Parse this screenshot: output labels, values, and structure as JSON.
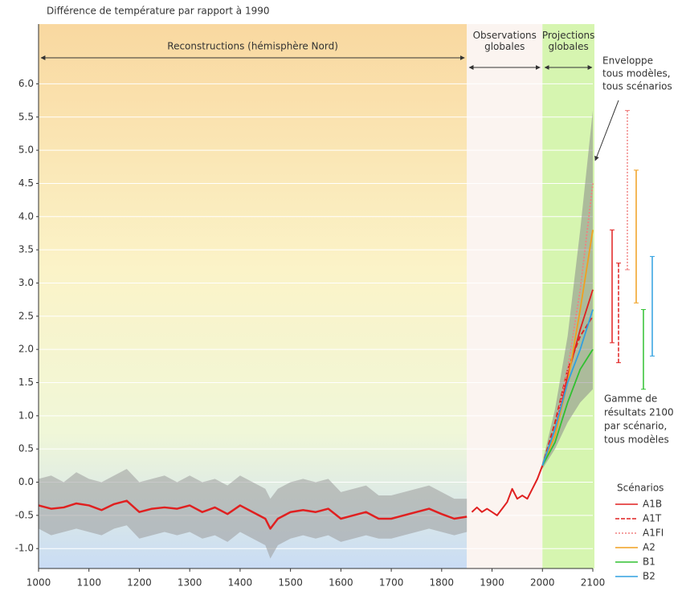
{
  "chart_data": {
    "type": "line",
    "title": "Différence de température par rapport à 1990",
    "xlim": [
      1000,
      2100
    ],
    "xticks": [
      1000,
      1100,
      1200,
      1300,
      1400,
      1500,
      1600,
      1700,
      1800,
      1900,
      2000,
      2100
    ],
    "ylim": [
      -1.3,
      6.9
    ],
    "yticks": [
      {
        "value": -1,
        "label": "-1.0"
      },
      -0.5,
      {
        "value": 0,
        "label": "0.0"
      },
      0.5,
      {
        "value": 1,
        "label": "1.0"
      },
      1.5,
      {
        "value": 2,
        "label": "2.0"
      },
      2.5,
      {
        "value": 3,
        "label": "3.0"
      },
      3.5,
      {
        "value": 4,
        "label": "4.0"
      },
      4.5,
      {
        "value": 5,
        "label": "5.0"
      },
      5.5,
      {
        "value": 6,
        "label": "6.0"
      }
    ],
    "grid": true,
    "periods": [
      {
        "label": "Reconstructions (hémisphère Nord)",
        "color": "#f7d9a0",
        "x": [
          1000,
          1025,
          1050,
          1075,
          1100,
          1125,
          1150,
          1175,
          1200,
          1225,
          1250,
          1275,
          1300,
          1325,
          1350,
          1375,
          1400,
          1425,
          1450,
          1460,
          1475,
          1500,
          1525,
          1550,
          1575,
          1600,
          1625,
          1650,
          1675,
          1700,
          1725,
          1750,
          1775,
          1800,
          1825,
          1850
        ],
        "values": [
          -0.35,
          -0.4,
          -0.38,
          -0.32,
          -0.35,
          -0.42,
          -0.33,
          -0.28,
          -0.45,
          -0.4,
          -0.38,
          -0.4,
          -0.35,
          -0.45,
          -0.38,
          -0.48,
          -0.35,
          -0.45,
          -0.55,
          -0.7,
          -0.55,
          -0.45,
          -0.42,
          -0.45,
          -0.4,
          -0.55,
          -0.5,
          -0.45,
          -0.55,
          -0.55,
          -0.5,
          -0.45,
          -0.4,
          -0.48,
          -0.55,
          -0.52
        ],
        "band_lower": [
          -0.7,
          -0.8,
          -0.75,
          -0.7,
          -0.75,
          -0.8,
          -0.7,
          -0.65,
          -0.85,
          -0.8,
          -0.75,
          -0.8,
          -0.75,
          -0.85,
          -0.8,
          -0.9,
          -0.75,
          -0.85,
          -0.95,
          -1.15,
          -0.95,
          -0.85,
          -0.8,
          -0.85,
          -0.8,
          -0.9,
          -0.85,
          -0.8,
          -0.85,
          -0.85,
          -0.8,
          -0.75,
          -0.7,
          -0.75,
          -0.8,
          -0.75
        ],
        "band_upper": [
          0.05,
          0.1,
          0.0,
          0.15,
          0.05,
          0.0,
          0.1,
          0.2,
          0.0,
          0.05,
          0.1,
          0.0,
          0.1,
          0.0,
          0.05,
          -0.05,
          0.1,
          0.0,
          -0.1,
          -0.25,
          -0.1,
          0.0,
          0.05,
          0.0,
          0.05,
          -0.15,
          -0.1,
          -0.05,
          -0.2,
          -0.2,
          -0.15,
          -0.1,
          -0.05,
          -0.15,
          -0.25,
          -0.25
        ]
      },
      {
        "label": "Observations globales",
        "color": "#fbf4f0",
        "x": [
          1860,
          1870,
          1880,
          1890,
          1900,
          1910,
          1920,
          1930,
          1940,
          1950,
          1960,
          1970,
          1980,
          1990,
          2000
        ],
        "values": [
          -0.45,
          -0.38,
          -0.45,
          -0.4,
          -0.45,
          -0.5,
          -0.4,
          -0.3,
          -0.1,
          -0.25,
          -0.2,
          -0.25,
          -0.1,
          0.05,
          0.25
        ]
      },
      {
        "label": "Projections globales",
        "color": "#d6f5b0",
        "x": [
          2000,
          2100
        ]
      }
    ],
    "envelope": {
      "label": [
        "Enveloppe",
        "tous modèles,",
        "tous scénarios"
      ],
      "x": [
        2000,
        2025,
        2050,
        2075,
        2100
      ],
      "lower": [
        0.2,
        0.5,
        0.9,
        1.2,
        1.4
      ],
      "upper": [
        0.3,
        1.1,
        2.2,
        3.8,
        5.6
      ]
    },
    "range_label": [
      "Gamme de",
      "résultats 2100",
      "par scénario,",
      "tous modèles"
    ],
    "legend_title": "Scénarios",
    "x": [
      2000,
      2025,
      2050,
      2075,
      2100
    ],
    "series": [
      {
        "name": "A1B",
        "color": "#e02020",
        "style": "solid",
        "values": [
          0.25,
          0.8,
          1.6,
          2.3,
          2.9
        ],
        "range_2100": [
          2.1,
          3.8
        ]
      },
      {
        "name": "A1T",
        "color": "#e02020",
        "style": "dashed",
        "values": [
          0.25,
          0.9,
          1.7,
          2.2,
          2.5
        ],
        "range_2100": [
          1.8,
          3.3
        ]
      },
      {
        "name": "A1FI",
        "color": "#f08080",
        "style": "dotted",
        "values": [
          0.25,
          0.8,
          1.7,
          2.9,
          4.5
        ],
        "range_2100": [
          3.2,
          5.6
        ]
      },
      {
        "name": "A2",
        "color": "#f0a020",
        "style": "solid",
        "values": [
          0.25,
          0.7,
          1.5,
          2.6,
          3.8
        ],
        "range_2100": [
          2.7,
          4.7
        ]
      },
      {
        "name": "B1",
        "color": "#30c030",
        "style": "solid",
        "values": [
          0.25,
          0.6,
          1.2,
          1.7,
          2.0
        ],
        "range_2100": [
          1.4,
          2.6
        ]
      },
      {
        "name": "B2",
        "color": "#30a0e0",
        "style": "solid",
        "values": [
          0.25,
          0.8,
          1.5,
          2.0,
          2.6
        ],
        "range_2100": [
          1.9,
          3.4
        ]
      }
    ]
  }
}
